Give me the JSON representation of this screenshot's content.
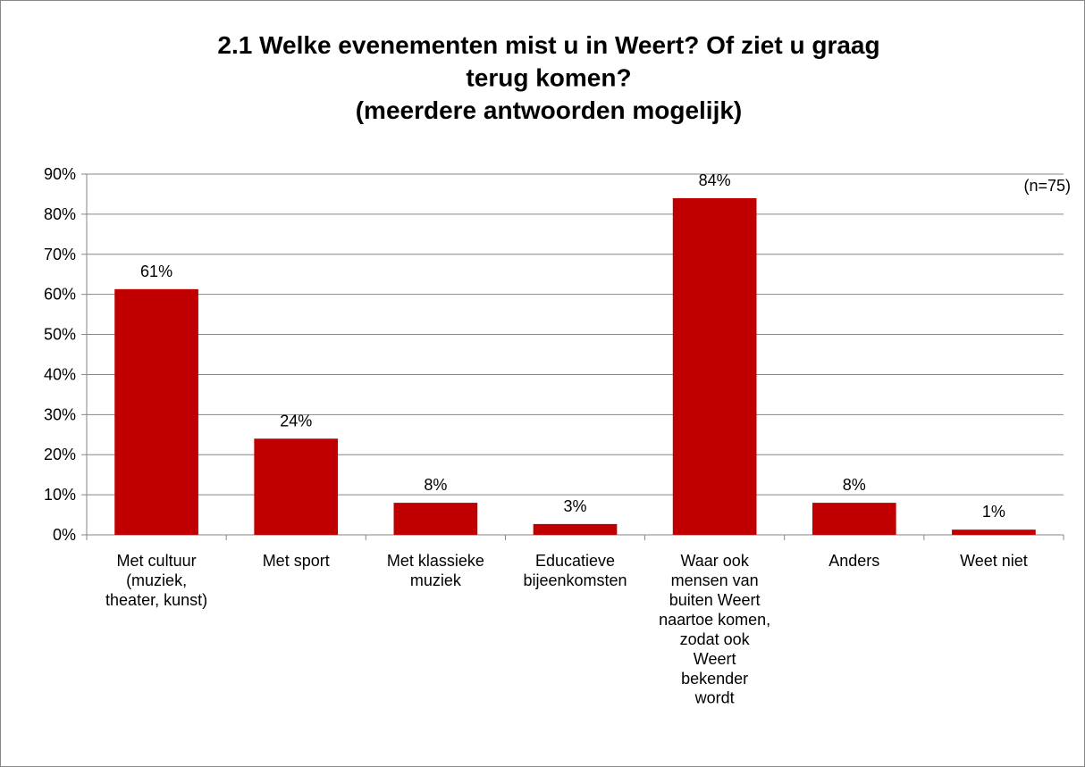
{
  "chart_data": {
    "type": "bar",
    "title": "2.1 Welke evenementen mist u in Weert? Of ziet u graag\nterug komen?\n(meerdere antwoorden mogelijk)",
    "annotation": "(n=75)",
    "categories": [
      "Met cultuur\n(muziek,\ntheater, kunst)",
      "Met sport",
      "Met klassieke\nmuziek",
      "Educatieve\nbijeenkomsten",
      "Waar ook\nmensen van\nbuiten Weert\nnaartoe komen,\nzodat ook\nWeert\nbekender\nwordt",
      "Anders",
      "Weet niet"
    ],
    "values": [
      61.3,
      24,
      8,
      2.7,
      84,
      8,
      1.3
    ],
    "value_labels": [
      "61%",
      "24%",
      "8%",
      "3%",
      "84%",
      "8%",
      "1%"
    ],
    "color": "#c00000",
    "ylim": [
      0,
      90
    ],
    "yticks": [
      {
        "value": 0,
        "label": "0%"
      },
      {
        "value": 10,
        "label": "10%"
      },
      {
        "value": 20,
        "label": "20%"
      },
      {
        "value": 30,
        "label": "30%"
      },
      {
        "value": 40,
        "label": "40%"
      },
      {
        "value": 50,
        "label": "50%"
      },
      {
        "value": 60,
        "label": "60%"
      },
      {
        "value": 70,
        "label": "70%"
      },
      {
        "value": 80,
        "label": "80%"
      },
      {
        "value": 90,
        "label": "90%"
      }
    ],
    "grid": true
  }
}
